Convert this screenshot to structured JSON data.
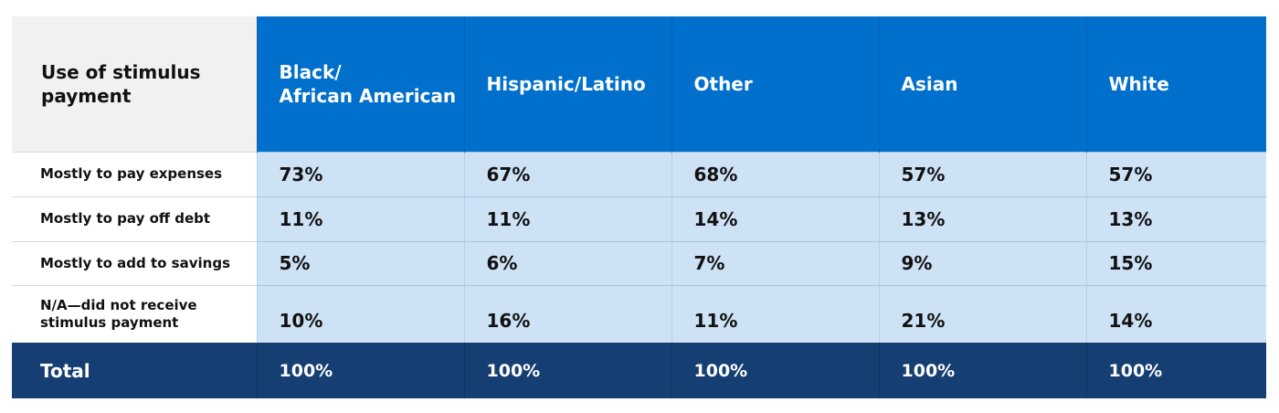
{
  "chart_data": {
    "type": "table",
    "row_header_label": "Use of stimulus payment",
    "columns": [
      "Black/\nAfrican American",
      "Hispanic/Latino",
      "Other",
      "Asian",
      "White"
    ],
    "rows": [
      {
        "label": "Mostly to pay expenses",
        "values": [
          "73%",
          "67%",
          "68%",
          "57%",
          "57%"
        ]
      },
      {
        "label": "Mostly to pay off debt",
        "values": [
          "11%",
          "11%",
          "14%",
          "13%",
          "13%"
        ]
      },
      {
        "label": "Mostly to add to savings",
        "values": [
          "5%",
          "6%",
          "7%",
          "9%",
          "15%"
        ]
      },
      {
        "label": "N/A—did not receive\nstimulus payment",
        "values": [
          "10%",
          "16%",
          "11%",
          "21%",
          "14%"
        ]
      }
    ],
    "total": {
      "label": "Total",
      "values": [
        "100%",
        "100%",
        "100%",
        "100%",
        "100%"
      ]
    },
    "colors": {
      "header_bg": "#0070cc",
      "corner_bg": "#f1f1f1",
      "cell_bg": "#cde2f5",
      "total_bg": "#153f73"
    }
  }
}
